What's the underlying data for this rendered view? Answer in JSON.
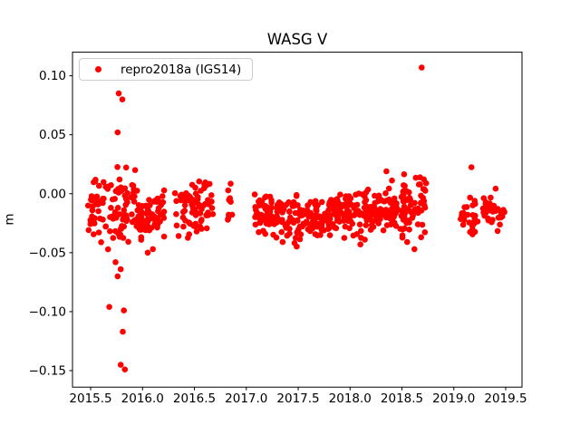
{
  "figure": {
    "background": "#ffffff"
  },
  "chart_data": {
    "type": "scatter",
    "title": "WASG V",
    "xlabel": "",
    "ylabel": "m",
    "grid": false,
    "legend_position": "upper left",
    "xlim": [
      2015.325,
      2019.657
    ],
    "ylim": [
      -0.164,
      0.12
    ],
    "xticks": [
      2015.5,
      2016.0,
      2016.5,
      2017.0,
      2017.5,
      2018.0,
      2018.5,
      2019.0,
      2019.5
    ],
    "xtick_labels": [
      "2015.5",
      "2016.0",
      "2016.5",
      "2017.0",
      "2017.5",
      "2018.0",
      "2018.5",
      "2019.0",
      "2019.5"
    ],
    "yticks": [
      0.1,
      0.05,
      0.0,
      -0.05,
      -0.1,
      -0.15
    ],
    "ytick_labels": [
      "0.10",
      "0.05",
      "0.00",
      "−0.05",
      "−0.10",
      "−0.15"
    ],
    "axis_color": "#000000",
    "series": [
      {
        "name": "repro2018a (IGS14)",
        "color": "#ff0000",
        "marker": "circle",
        "marker_radius_px": 3.3,
        "clusters": [
          {
            "x_start": 2015.47,
            "x_end": 2015.95,
            "n": 100,
            "mean": -0.012,
            "std": 0.016,
            "min": -0.052,
            "max": 0.033
          },
          {
            "x_start": 2015.95,
            "x_end": 2016.21,
            "n": 70,
            "mean": -0.018,
            "std": 0.009,
            "min": -0.05,
            "max": 0.012
          },
          {
            "x_start": 2016.31,
            "x_end": 2016.68,
            "n": 75,
            "mean": -0.013,
            "std": 0.0115,
            "min": -0.044,
            "max": 0.019
          },
          {
            "x_start": 2016.82,
            "x_end": 2016.88,
            "n": 9,
            "mean": -0.01,
            "std": 0.015,
            "min": -0.034,
            "max": 0.013
          },
          {
            "x_start": 2017.08,
            "x_end": 2017.46,
            "n": 95,
            "mean": -0.018,
            "std": 0.0085,
            "min": -0.04,
            "max": 0.004
          },
          {
            "x_start": 2017.46,
            "x_end": 2017.81,
            "n": 95,
            "mean": -0.02,
            "std": 0.0095,
            "min": -0.046,
            "max": 0.002
          },
          {
            "x_start": 2017.81,
            "x_end": 2018.16,
            "n": 95,
            "mean": -0.016,
            "std": 0.009,
            "min": -0.04,
            "max": 0.008
          },
          {
            "x_start": 2018.16,
            "x_end": 2018.51,
            "n": 90,
            "mean": -0.014,
            "std": 0.0095,
            "min": -0.038,
            "max": 0.015
          },
          {
            "x_start": 2018.51,
            "x_end": 2018.74,
            "n": 60,
            "mean": -0.009,
            "std": 0.013,
            "min": -0.047,
            "max": 0.028
          },
          {
            "x_start": 2019.06,
            "x_end": 2019.23,
            "n": 28,
            "mean": -0.016,
            "std": 0.011,
            "min": -0.04,
            "max": 0.005
          },
          {
            "x_start": 2019.28,
            "x_end": 2019.49,
            "n": 35,
            "mean": -0.015,
            "std": 0.009,
            "min": -0.035,
            "max": 0.006
          }
        ],
        "outlier_points": [
          [
            2018.69,
            0.107
          ],
          [
            2015.77,
            0.085
          ],
          [
            2015.805,
            0.08
          ],
          [
            2015.76,
            0.052
          ],
          [
            2015.74,
            -0.058
          ],
          [
            2015.79,
            -0.064
          ],
          [
            2015.76,
            -0.07
          ],
          [
            2015.68,
            -0.096
          ],
          [
            2015.82,
            -0.099
          ],
          [
            2015.81,
            -0.117
          ],
          [
            2015.79,
            -0.145
          ],
          [
            2015.83,
            -0.149
          ],
          [
            2016.05,
            -0.05
          ],
          [
            2016.1,
            -0.047
          ],
          [
            2017.35,
            -0.041
          ],
          [
            2018.1,
            -0.043
          ],
          [
            2018.35,
            0.019
          ],
          [
            2018.55,
            -0.041
          ],
          [
            2018.62,
            -0.047
          ],
          [
            2019.17,
            0.0225
          ]
        ]
      }
    ]
  }
}
